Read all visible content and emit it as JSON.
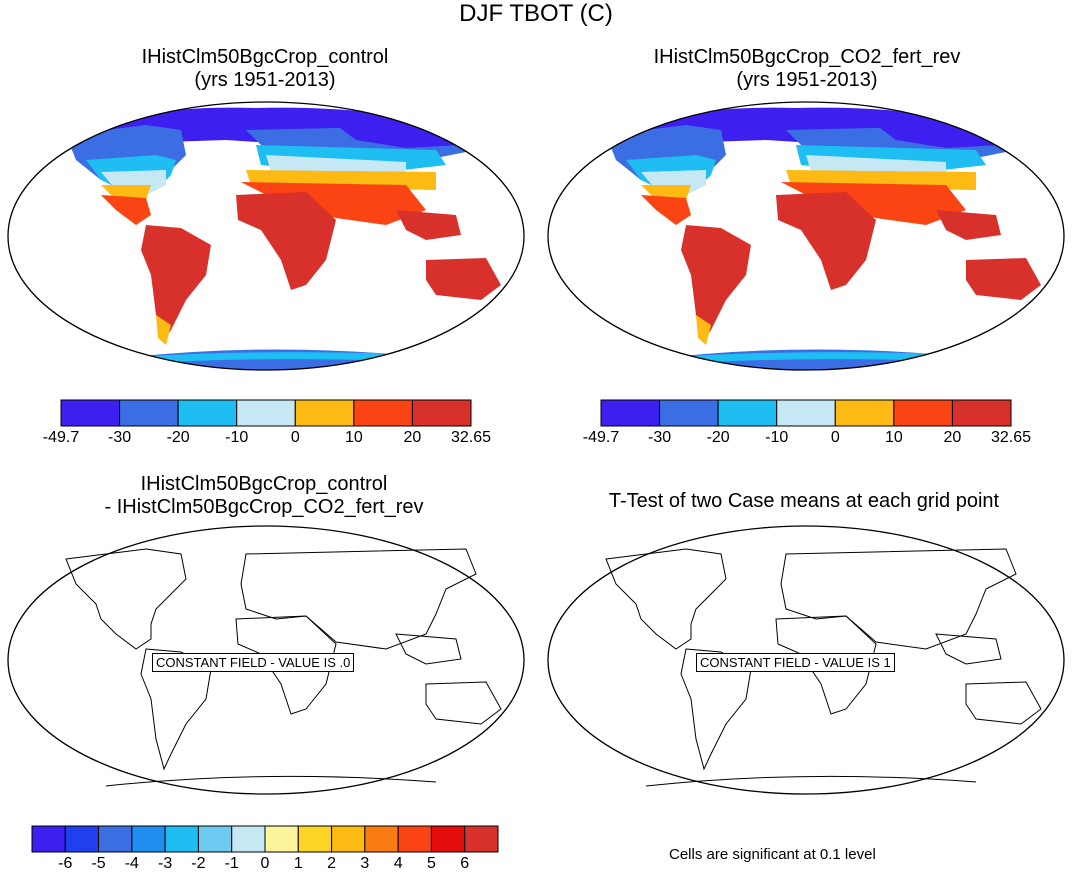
{
  "main_title": "DJF TBOT (C)",
  "panels": [
    {
      "id": "p1",
      "title_lines": [
        "IHistClm50BgcCrop_control",
        "(yrs 1951-2013)"
      ],
      "type": "field"
    },
    {
      "id": "p2",
      "title_lines": [
        "IHistClm50BgcCrop_CO2_fert_rev",
        "(yrs 1951-2013)"
      ],
      "type": "field"
    },
    {
      "id": "p3",
      "title_lines": [
        "IHistClm50BgcCrop_control",
        "- IHistClm50BgcCrop_CO2_fert_rev"
      ],
      "type": "difference",
      "constant_label": "CONSTANT FIELD - VALUE IS .0"
    },
    {
      "id": "p4",
      "title_lines": [
        "T-Test of two Case means at each grid point"
      ],
      "type": "ttest",
      "constant_label": "CONSTANT FIELD - VALUE IS 1"
    }
  ],
  "field_colorbar": {
    "labels": [
      "-49.7",
      "-30",
      "-20",
      "-10",
      "0",
      "10",
      "20",
      "32.65"
    ],
    "colors": [
      "#3d1ff0",
      "#3c6ee3",
      "#1ebdf2",
      "#c6e8f5",
      "#fcba12",
      "#fa4413",
      "#d8312c"
    ]
  },
  "diff_colorbar": {
    "labels": [
      "-6",
      "-5",
      "-4",
      "-3",
      "-2",
      "-1",
      "0",
      "1",
      "2",
      "3",
      "4",
      "5",
      "6"
    ],
    "colors": [
      "#3d1ff0",
      "#2040f0",
      "#3c6ee3",
      "#1f8ef0",
      "#1ebdf2",
      "#6ccaf0",
      "#c6e8f5",
      "#fdf39a",
      "#fcd524",
      "#fcba12",
      "#fa7a13",
      "#fa4413",
      "#e40c0c",
      "#d8312c"
    ]
  },
  "significance_note": "Cells are significant at 0.1 level"
}
